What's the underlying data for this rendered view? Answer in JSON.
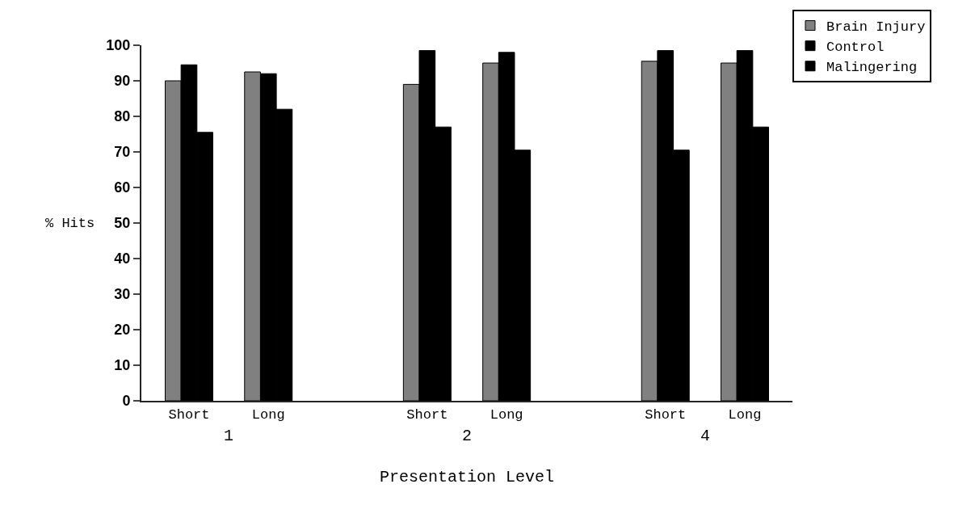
{
  "chart_data": {
    "type": "bar",
    "xlabel": "Presentation Level",
    "ylabel": "% Hits",
    "categories": [
      "Short",
      "Long",
      null,
      "Short",
      "Long",
      null,
      "Short",
      "Long"
    ],
    "series": [
      {
        "name": "Brain Injury",
        "color": "#808080",
        "values": [
          90,
          92.5,
          null,
          89,
          95,
          null,
          95.5,
          95
        ]
      },
      {
        "name": "Control",
        "color": "#000000",
        "values": [
          94.5,
          92,
          null,
          98.5,
          98,
          null,
          98.5,
          98.5
        ]
      },
      {
        "name": "Malingering",
        "color": "#000000",
        "values": [
          75.5,
          82,
          null,
          77,
          70.5,
          null,
          70.5,
          77
        ]
      }
    ],
    "annotations": [
      "1",
      "2",
      "4"
    ],
    "ylim": [
      0,
      100
    ],
    "yticks": [
      0,
      10,
      20,
      30,
      40,
      50,
      60,
      70,
      80,
      90,
      100
    ],
    "grid": false,
    "legend": "top right"
  }
}
